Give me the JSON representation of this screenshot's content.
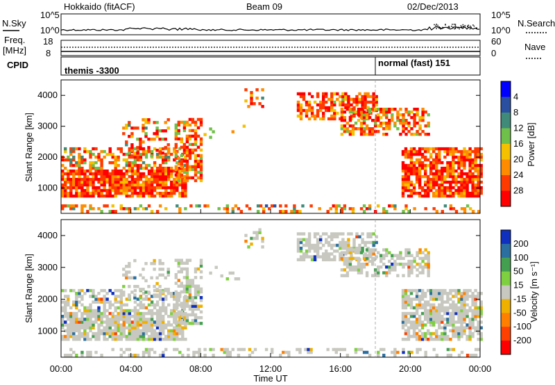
{
  "header": {
    "title": "Hokkaido (fitACF)",
    "beam": "Beam 09",
    "date": "02/Dec/2013"
  },
  "noise_panel": {
    "left_label": "N.Sky",
    "right_label": "N.Search",
    "ticks_left": [
      "10^5",
      "10^0"
    ],
    "ticks_right": [
      "10^5",
      "10^0"
    ]
  },
  "freq_panel": {
    "left_label_line1": "Freq.",
    "left_label_line2": "[MHz]",
    "right_label": "Nave",
    "ticks_left": [
      "18",
      "8"
    ],
    "ticks_right": [
      "60",
      "0"
    ]
  },
  "cpid_panel": {
    "label": "CPID",
    "mode1": "themis -3300",
    "mode2": "normal (fast) 151"
  },
  "chart_data": [
    {
      "type": "heatmap",
      "panel": "power",
      "ylabel": "Slant Range [km]",
      "xlabel": "",
      "ylim": [
        180,
        4500
      ],
      "yticks": [
        "1000",
        "2000",
        "3000",
        "4000"
      ],
      "colorbar_label": "Power [dB]",
      "colorbar_ticks": [
        "4",
        "8",
        "12",
        "16",
        "20",
        "24",
        "28"
      ],
      "colors": [
        "#0000ff",
        "#2a4fa0",
        "#3f8a78",
        "#6fc04a",
        "#f5c000",
        "#ff8c00",
        "#ff3a00",
        "#ff0000"
      ]
    },
    {
      "type": "heatmap",
      "panel": "velocity",
      "ylabel": "Slant Range [km]",
      "xlabel": "Time UT",
      "ylim": [
        180,
        4500
      ],
      "yticks": [
        "1000",
        "2000",
        "3000",
        "4000"
      ],
      "xticks": [
        "00:00",
        "04:00",
        "08:00",
        "12:00",
        "16:00",
        "20:00",
        "00:00"
      ],
      "colorbar_label": "Velocity [m s⁻¹]",
      "colorbar_ticks": [
        "200",
        "100",
        "50",
        "15",
        "-15",
        "-50",
        "-100",
        "-200"
      ],
      "colors": [
        "#1030c0",
        "#2a6fa0",
        "#44a050",
        "#7fd040",
        "#c8c8c0",
        "#f0b000",
        "#ff8000",
        "#ff4000",
        "#ff0000"
      ]
    }
  ]
}
